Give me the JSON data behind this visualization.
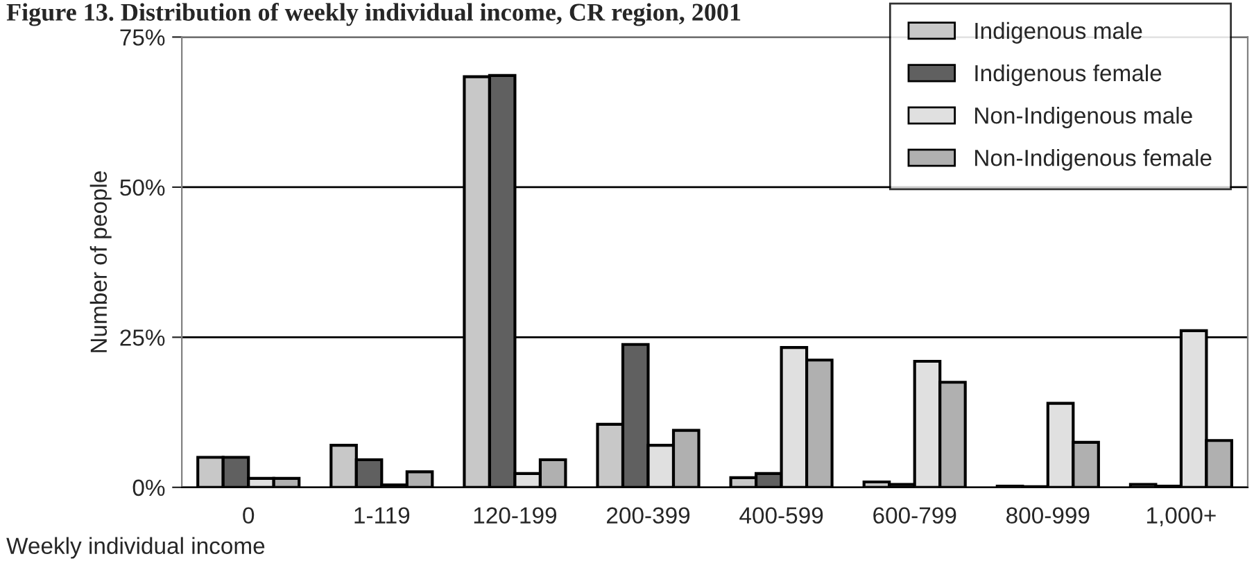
{
  "chart_data": {
    "type": "bar",
    "title": "Figure 13. Distribution of weekly individual income, CR region, 2001",
    "xlabel": "Weekly individual income",
    "ylabel": "Number of people",
    "categories": [
      "0",
      "1-119",
      "120-199",
      "200-399",
      "400-599",
      "600-799",
      "800-999",
      "1,000+"
    ],
    "series": [
      {
        "name": "Indigenous male",
        "color": "#c8c8c8",
        "values": [
          5.0,
          7.0,
          68.4,
          10.5,
          1.6,
          0.9,
          0.2,
          0.5
        ]
      },
      {
        "name": "Indigenous female",
        "color": "#606060",
        "values": [
          5.0,
          4.6,
          68.6,
          23.8,
          2.3,
          0.5,
          0.1,
          0.2
        ]
      },
      {
        "name": "Non-Indigenous male",
        "color": "#e0e0e0",
        "values": [
          1.5,
          0.4,
          2.3,
          7.0,
          23.3,
          21.0,
          14.0,
          26.1
        ]
      },
      {
        "name": "Non-Indigenous female",
        "color": "#b0b0b0",
        "values": [
          1.5,
          2.6,
          4.6,
          9.5,
          21.2,
          17.5,
          7.5,
          7.8
        ]
      }
    ],
    "ylim": [
      0,
      75
    ],
    "yticks": [
      {
        "value": 0,
        "label": "0%"
      },
      {
        "value": 25,
        "label": "25%"
      },
      {
        "value": 50,
        "label": "50%"
      },
      {
        "value": 75,
        "label": "75%"
      }
    ],
    "grid": "y",
    "legend": "top right"
  }
}
